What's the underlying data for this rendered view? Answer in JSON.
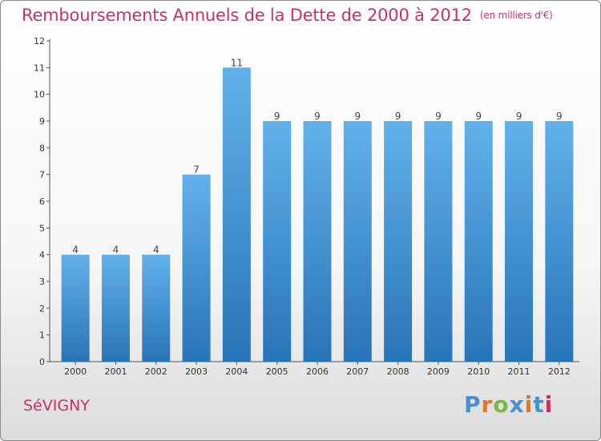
{
  "header": {
    "title": "Remboursements Annuels de la Dette de 2000 à 2012",
    "unit": "(en milliers d'€)"
  },
  "footer": {
    "town": "SéVIGNY",
    "logo": [
      "P",
      "r",
      "o",
      "x",
      "i",
      "t",
      "i"
    ]
  },
  "colors": {
    "title": "#c6335e",
    "bar_top": "#63b1ea",
    "bar_bottom": "#2874b8",
    "logo": [
      "#4a8fd0",
      "#e8751a",
      "#7ab648",
      "#4a8fd0",
      "#e8751a",
      "#4a8fd0",
      "#c6335e"
    ]
  },
  "chart_data": {
    "type": "bar",
    "categories": [
      "2000",
      "2001",
      "2002",
      "2003",
      "2004",
      "2005",
      "2006",
      "2007",
      "2008",
      "2009",
      "2010",
      "2011",
      "2012"
    ],
    "values": [
      4,
      4,
      4,
      7,
      11,
      9,
      9,
      9,
      9,
      9,
      9,
      9,
      9
    ],
    "value_labels": [
      "4",
      "4",
      "4",
      "7",
      "11",
      "9",
      "9",
      "9",
      "9",
      "9",
      "9",
      "9",
      "9"
    ],
    "yticks": [
      "0",
      "1",
      "2",
      "3",
      "4",
      "5",
      "6",
      "7",
      "8",
      "9",
      "10",
      "11",
      "12"
    ],
    "ylim": [
      0,
      12
    ],
    "title": "Remboursements Annuels de la Dette de 2000 à 2012",
    "xlabel": "",
    "ylabel": "",
    "grid": false,
    "legend": "none"
  }
}
